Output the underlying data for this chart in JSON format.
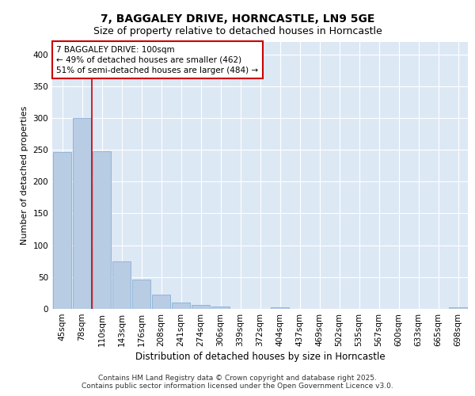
{
  "title": "7, BAGGALEY DRIVE, HORNCASTLE, LN9 5GE",
  "subtitle": "Size of property relative to detached houses in Horncastle",
  "xlabel": "Distribution of detached houses by size in Horncastle",
  "ylabel": "Number of detached properties",
  "categories": [
    "45sqm",
    "78sqm",
    "110sqm",
    "143sqm",
    "176sqm",
    "208sqm",
    "241sqm",
    "274sqm",
    "306sqm",
    "339sqm",
    "372sqm",
    "404sqm",
    "437sqm",
    "469sqm",
    "502sqm",
    "535sqm",
    "567sqm",
    "600sqm",
    "633sqm",
    "665sqm",
    "698sqm"
  ],
  "values": [
    247,
    300,
    248,
    75,
    46,
    22,
    10,
    6,
    4,
    0,
    0,
    3,
    0,
    0,
    0,
    0,
    0,
    0,
    0,
    0,
    3
  ],
  "bar_color": "#b8cce4",
  "bar_edge_color": "#7ba7d0",
  "vline_x_index": 1.5,
  "vline_color": "#cc0000",
  "annotation_text": "7 BAGGALEY DRIVE: 100sqm\n← 49% of detached houses are smaller (462)\n51% of semi-detached houses are larger (484) →",
  "annotation_box_color": "#cc0000",
  "annotation_text_color": "#000000",
  "ylim": [
    0,
    420
  ],
  "yticks": [
    0,
    50,
    100,
    150,
    200,
    250,
    300,
    350,
    400
  ],
  "background_color": "#dde8f5",
  "footer_text": "Contains HM Land Registry data © Crown copyright and database right 2025.\nContains public sector information licensed under the Open Government Licence v3.0.",
  "title_fontsize": 10,
  "subtitle_fontsize": 9,
  "xlabel_fontsize": 8.5,
  "ylabel_fontsize": 8,
  "tick_fontsize": 7.5,
  "annotation_fontsize": 7.5,
  "footer_fontsize": 6.5
}
